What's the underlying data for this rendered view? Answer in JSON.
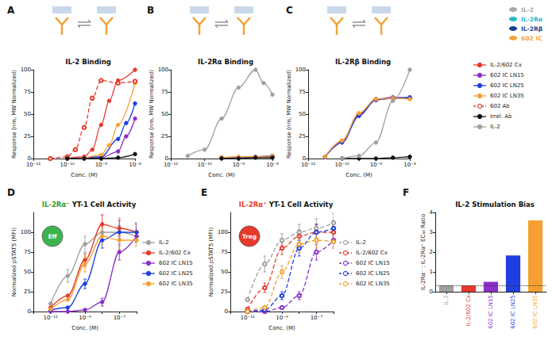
{
  "figure": {
    "schematic_legend": [
      {
        "label": "IL-2",
        "color": "#a8a8a8"
      },
      {
        "label": "IL-2Rα",
        "color": "#29b6c9"
      },
      {
        "label": "IL-2Rβ",
        "color": "#1c3f94"
      },
      {
        "label": "602 IC",
        "color": "#f2a33a"
      }
    ],
    "legend": {
      "position": "right",
      "entries": [
        {
          "name": "IL-2/602 Cx",
          "color": "#e8392b",
          "marker": "circle",
          "line_style": "solid"
        },
        {
          "name": "602 IC LN15",
          "color": "#8b2fc9",
          "marker": "circle",
          "line_style": "solid"
        },
        {
          "name": "602 IC LN25",
          "color": "#1f3fe0",
          "marker": "circle",
          "line_style": "solid"
        },
        {
          "name": "602 IC LN35",
          "color": "#f5a030",
          "marker": "circle",
          "line_style": "solid"
        },
        {
          "name": "602 Ab",
          "color": "#e8392b",
          "marker": "hollow",
          "line_style": "dashed"
        },
        {
          "name": "Irrel. Ab",
          "color": "#111111",
          "marker": "circle",
          "line_style": "solid"
        },
        {
          "name": "IL-2",
          "color": "#a0a0a0",
          "marker": "circle",
          "line_style": "solid"
        }
      ]
    }
  },
  "chart_data": [
    {
      "label": "A",
      "type": "line",
      "title": "IL-2 Binding",
      "x_label": "Conc. (M)",
      "y_label": "Response (nm, MW Normalized)",
      "log": "x",
      "grid": false,
      "xlim": [
        1e-12,
        1e-06
      ],
      "xticks": [
        {
          "value": 1e-12,
          "label": "10⁻¹²"
        },
        {
          "value": 1e-10,
          "label": "10⁻¹⁰"
        },
        {
          "value": 1e-08,
          "label": "10⁻⁸"
        },
        {
          "value": 1e-06,
          "label": "10⁻⁶"
        }
      ],
      "ylim": [
        0,
        100
      ],
      "yticks": [
        0,
        25,
        50,
        75,
        100
      ],
      "series": [
        {
          "name": "IL-2/602 Cx",
          "color": "#e8392b",
          "marker": "circle",
          "line_style": "solid",
          "x": [
            1e-10,
            1e-09,
            3e-09,
            1e-08,
            3e-08,
            1e-07,
            1e-06
          ],
          "values": [
            0,
            2,
            10,
            38,
            65,
            88,
            100
          ]
        },
        {
          "name": "602 IC LN15",
          "color": "#8b2fc9",
          "marker": "circle",
          "line_style": "solid",
          "x": [
            1e-09,
            1e-08,
            1e-07,
            3e-07,
            1e-06
          ],
          "values": [
            0,
            1,
            8,
            25,
            45
          ]
        },
        {
          "name": "602 IC LN25",
          "color": "#1f3fe0",
          "marker": "circle",
          "line_style": "solid",
          "x": [
            1e-09,
            1e-08,
            1e-07,
            3e-07,
            1e-06
          ],
          "values": [
            0,
            2,
            22,
            40,
            62
          ]
        },
        {
          "name": "602 IC LN35",
          "color": "#f5a030",
          "marker": "circle",
          "line_style": "solid",
          "x": [
            1e-09,
            1e-08,
            3e-08,
            1e-07,
            1e-06
          ],
          "values": [
            0,
            4,
            15,
            38,
            85
          ]
        },
        {
          "name": "602 Ab",
          "color": "#e8392b",
          "marker": "hollow",
          "line_style": "dashed",
          "x": [
            1e-11,
            1e-10,
            3e-10,
            1e-09,
            3e-09,
            1e-08,
            1e-07,
            1e-06
          ],
          "values": [
            0,
            2,
            10,
            35,
            68,
            88,
            85,
            87
          ]
        },
        {
          "name": "Irrel. Ab",
          "color": "#111111",
          "marker": "circle",
          "line_style": "solid",
          "x": [
            1e-10,
            1e-09,
            1e-08,
            1e-07,
            1e-06
          ],
          "values": [
            0,
            0,
            0,
            1,
            5
          ]
        }
      ]
    },
    {
      "label": "B",
      "type": "line",
      "title": "IL-2Rα Binding",
      "x_label": "Conc. (M)",
      "y_label": "Response (nm, MW Normalized)",
      "log": "x",
      "grid": false,
      "xlim": [
        1e-12,
        1e-06
      ],
      "xticks": [
        {
          "value": 1e-12,
          "label": "10⁻¹²"
        },
        {
          "value": 1e-10,
          "label": "10⁻¹⁰"
        },
        {
          "value": 1e-08,
          "label": "10⁻⁸"
        },
        {
          "value": 1e-06,
          "label": "10⁻⁶"
        }
      ],
      "ylim": [
        0,
        100
      ],
      "yticks": [
        0,
        25,
        50,
        75,
        100
      ],
      "series": [
        {
          "name": "IL-2/602 Cx",
          "color": "#e8392b",
          "marker": "circle",
          "line_style": "solid",
          "x": [
            1e-09,
            1e-08,
            1e-07,
            1e-06
          ],
          "values": [
            1,
            1,
            2,
            2
          ]
        },
        {
          "name": "602 IC LN15",
          "color": "#8b2fc9",
          "marker": "circle",
          "line_style": "solid",
          "x": [
            1e-09,
            1e-08,
            1e-07,
            1e-06
          ],
          "values": [
            1,
            1,
            2,
            3
          ]
        },
        {
          "name": "602 IC LN25",
          "color": "#1f3fe0",
          "marker": "circle",
          "line_style": "solid",
          "x": [
            1e-09,
            1e-08,
            1e-07,
            1e-06
          ],
          "values": [
            1,
            1,
            2,
            3
          ]
        },
        {
          "name": "602 IC LN35",
          "color": "#f5a030",
          "marker": "circle",
          "line_style": "solid",
          "x": [
            1e-09,
            1e-08,
            1e-07,
            1e-06
          ],
          "values": [
            1,
            2,
            2,
            3
          ]
        },
        {
          "name": "Irrel. Ab",
          "color": "#111111",
          "marker": "circle",
          "line_style": "solid",
          "x": [
            1e-09,
            1e-08,
            1e-07,
            1e-06
          ],
          "values": [
            0,
            0,
            1,
            1
          ]
        },
        {
          "name": "IL-2",
          "color": "#a0a0a0",
          "marker": "circle",
          "line_style": "solid",
          "x": [
            1e-11,
            1e-10,
            1e-09,
            1e-08,
            1e-07,
            3e-07,
            1e-06
          ],
          "values": [
            3,
            10,
            45,
            80,
            100,
            85,
            72
          ]
        }
      ]
    },
    {
      "label": "C",
      "type": "line",
      "title": "IL-2Rβ Binding",
      "x_label": "Conc. (M)",
      "y_label": "Response (nm, MW Normalized)",
      "log": "x",
      "grid": false,
      "xlim": [
        1e-12,
        1e-06
      ],
      "xticks": [
        {
          "value": 1e-12,
          "label": "10⁻¹²"
        },
        {
          "value": 1e-10,
          "label": "10⁻¹⁰"
        },
        {
          "value": 1e-08,
          "label": "10⁻⁸"
        },
        {
          "value": 1e-06,
          "label": "10⁻⁶"
        }
      ],
      "ylim": [
        0,
        100
      ],
      "yticks": [
        0,
        25,
        50,
        75,
        100
      ],
      "series": [
        {
          "name": "IL-2/602 Cx",
          "color": "#e8392b",
          "marker": "circle",
          "line_style": "solid",
          "x": [
            1e-11,
            1e-10,
            1e-09,
            1e-08,
            1e-07,
            1e-06
          ],
          "values": [
            2,
            20,
            50,
            66,
            68,
            68
          ]
        },
        {
          "name": "602 IC LN15",
          "color": "#8b2fc9",
          "marker": "circle",
          "line_style": "solid",
          "x": [
            1e-11,
            1e-10,
            1e-09,
            1e-08,
            1e-07,
            1e-06
          ],
          "values": [
            2,
            19,
            49,
            67,
            69,
            68
          ]
        },
        {
          "name": "602 IC LN25",
          "color": "#1f3fe0",
          "marker": "circle",
          "line_style": "solid",
          "x": [
            1e-11,
            1e-10,
            1e-09,
            1e-08,
            1e-07,
            1e-06
          ],
          "values": [
            2,
            18,
            48,
            66,
            68,
            69
          ]
        },
        {
          "name": "602 IC LN35",
          "color": "#f5a030",
          "marker": "circle",
          "line_style": "solid",
          "x": [
            1e-11,
            1e-10,
            1e-09,
            1e-08,
            1e-07,
            1e-06
          ],
          "values": [
            2,
            20,
            51,
            67,
            68,
            67
          ]
        },
        {
          "name": "Irrel. Ab",
          "color": "#111111",
          "marker": "circle",
          "line_style": "solid",
          "x": [
            1e-10,
            1e-09,
            1e-08,
            1e-07,
            1e-06
          ],
          "values": [
            0,
            0,
            0,
            1,
            2
          ]
        },
        {
          "name": "IL-2",
          "color": "#a0a0a0",
          "marker": "circle",
          "line_style": "solid",
          "x": [
            1e-10,
            1e-09,
            1e-08,
            1e-07,
            1e-06
          ],
          "values": [
            0,
            3,
            18,
            65,
            100
          ]
        }
      ]
    },
    {
      "label": "D",
      "type": "line",
      "title": "IL-2Rα⁻ YT-1 Cell Activity",
      "x_label": "Conc. (M)",
      "y_label": "Normalized pSTAT5 (MFI)",
      "annotations": [
        "Eff"
      ],
      "log": "x",
      "grid": false,
      "legend": "right",
      "xlim": [
        1e-12,
        1e-06
      ],
      "xticks": [
        {
          "value": 1e-11,
          "label": "10⁻¹¹"
        },
        {
          "value": 1e-09,
          "label": "10⁻⁹"
        },
        {
          "value": 1e-07,
          "label": "10⁻⁷"
        }
      ],
      "ylim": [
        0,
        125
      ],
      "yticks": [
        0,
        25,
        50,
        75,
        100
      ],
      "series": [
        {
          "name": "IL-2",
          "color": "#a0a0a0",
          "marker": "circle",
          "line_style": "solid",
          "x": [
            1e-11,
            1e-10,
            1e-09,
            1e-08,
            1e-07,
            1e-06
          ],
          "values": [
            10,
            45,
            85,
            100,
            100,
            95
          ],
          "errors": [
            null,
            8,
            10,
            12,
            18,
            12
          ]
        },
        {
          "name": "IL-2/602 Cx",
          "color": "#e8392b",
          "marker": "circle",
          "line_style": "solid",
          "x": [
            1e-11,
            1e-10,
            1e-09,
            1e-08,
            1e-07,
            1e-06
          ],
          "values": [
            5,
            20,
            65,
            110,
            105,
            100
          ],
          "errors": [
            null,
            null,
            8,
            12,
            10,
            10
          ]
        },
        {
          "name": "602 IC LN15",
          "color": "#8b2fc9",
          "marker": "circle",
          "line_style": "solid",
          "x": [
            1e-11,
            1e-10,
            1e-09,
            1e-08,
            1e-07,
            1e-06
          ],
          "values": [
            0,
            0,
            2,
            12,
            75,
            95
          ],
          "errors": [
            null,
            null,
            null,
            5,
            10,
            8
          ]
        },
        {
          "name": "602 IC LN25",
          "color": "#1f3fe0",
          "marker": "circle",
          "line_style": "solid",
          "x": [
            1e-11,
            1e-10,
            1e-09,
            1e-08,
            1e-07,
            1e-06
          ],
          "values": [
            2,
            5,
            35,
            90,
            100,
            100
          ],
          "errors": [
            null,
            null,
            6,
            10,
            8,
            12
          ]
        },
        {
          "name": "602 IC LN35",
          "color": "#f5a030",
          "marker": "circle",
          "line_style": "solid",
          "x": [
            1e-11,
            1e-10,
            1e-09,
            1e-08,
            1e-07,
            1e-06
          ],
          "values": [
            3,
            15,
            60,
            95,
            90,
            90
          ],
          "errors": [
            null,
            null,
            10,
            10,
            12,
            8
          ]
        }
      ]
    },
    {
      "label": "E",
      "type": "line",
      "title": "IL-2Rα⁺ YT-1 Cell Activity",
      "x_label": "Conc. (M)",
      "y_label": "Normalized pSTAT5 (MFI)",
      "annotations": [
        "Treg"
      ],
      "log": "x",
      "grid": false,
      "legend": "right",
      "xlim": [
        1e-12,
        1e-06
      ],
      "xticks": [
        {
          "value": 1e-11,
          "label": "10⁻¹¹"
        },
        {
          "value": 1e-09,
          "label": "10⁻⁹"
        },
        {
          "value": 1e-07,
          "label": "10⁻⁷"
        }
      ],
      "ylim": [
        0,
        125
      ],
      "yticks": [
        0,
        25,
        50,
        75,
        100
      ],
      "series": [
        {
          "name": "IL-2",
          "color": "#a0a0a0",
          "marker": "hollow",
          "line_style": "dashed",
          "x": [
            1e-11,
            1e-10,
            1e-09,
            1e-08,
            1e-07,
            1e-06
          ],
          "values": [
            15,
            60,
            90,
            100,
            105,
            112
          ],
          "errors": [
            null,
            10,
            8,
            10,
            12,
            12
          ]
        },
        {
          "name": "IL-2/602 Cx",
          "color": "#e8392b",
          "marker": "hollow",
          "line_style": "dashed",
          "x": [
            1e-11,
            1e-10,
            1e-09,
            1e-08,
            1e-07,
            1e-06
          ],
          "values": [
            3,
            30,
            80,
            95,
            100,
            100
          ],
          "errors": [
            null,
            6,
            8,
            8,
            10,
            8
          ]
        },
        {
          "name": "602 IC LN15",
          "color": "#8b2fc9",
          "marker": "hollow",
          "line_style": "dashed",
          "x": [
            1e-11,
            1e-10,
            1e-09,
            1e-08,
            1e-07,
            1e-06
          ],
          "values": [
            0,
            0,
            5,
            20,
            75,
            90
          ],
          "errors": [
            null,
            null,
            null,
            5,
            10,
            10
          ]
        },
        {
          "name": "602 IC LN25",
          "color": "#1f3fe0",
          "marker": "hollow",
          "line_style": "dashed",
          "x": [
            1e-11,
            1e-10,
            1e-09,
            1e-08,
            1e-07,
            1e-06
          ],
          "values": [
            0,
            2,
            20,
            80,
            100,
            105
          ],
          "errors": [
            null,
            null,
            5,
            10,
            10,
            10
          ]
        },
        {
          "name": "602 IC LN35",
          "color": "#f5a030",
          "marker": "hollow",
          "line_style": "dashed",
          "x": [
            1e-11,
            1e-10,
            1e-09,
            1e-08,
            1e-07,
            1e-06
          ],
          "values": [
            0,
            5,
            50,
            85,
            90,
            88
          ],
          "errors": [
            null,
            null,
            8,
            10,
            10,
            8
          ]
        }
      ]
    },
    {
      "label": "F",
      "type": "bar",
      "title": "IL-2 Stimulation Bias",
      "y_label": "IL-2Rα⁻ : IL-2Rα⁺ EC₅₀ Ratio",
      "grid": false,
      "categories": [
        "IL-2",
        "IL-2/602 Cx",
        "602 IC LN15",
        "602 IC LN25",
        "602 IC LN35"
      ],
      "values": [
        0.33,
        0.32,
        0.5,
        1.83,
        3.6
      ],
      "colors": [
        "#a0a0a0",
        "#e8392b",
        "#8b2fc9",
        "#1f3fe0",
        "#f5a030"
      ],
      "reference": 0.33,
      "ylim": [
        0,
        4
      ],
      "yticks": [
        0,
        1,
        2,
        3,
        4
      ]
    }
  ]
}
